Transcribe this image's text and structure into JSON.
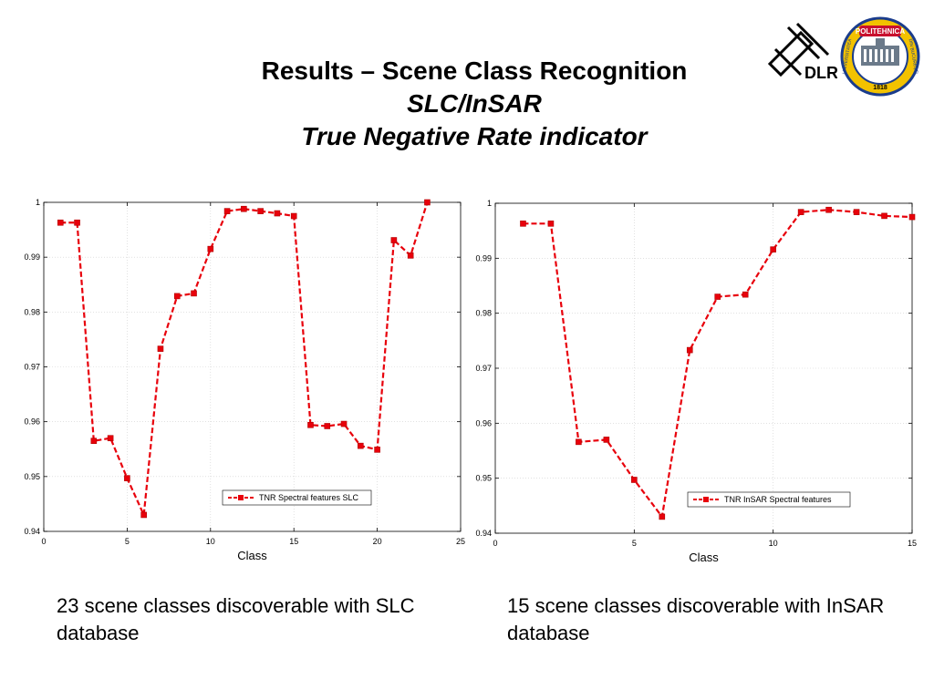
{
  "header": {
    "title": "Results – Scene Class Recognition",
    "subtitle1": "SLC/InSAR",
    "subtitle2": "True Negative Rate indicator"
  },
  "logos": {
    "dlr_text": "DLR",
    "poli_top": "POLITEHNICA",
    "poli_year": "1818",
    "poli_left": "UNIVERSITATEA",
    "poli_right": "DIN BUCUREȘTI"
  },
  "chart_data": [
    {
      "type": "line",
      "xlabel": "Class",
      "ylabel": "",
      "xlim": [
        0,
        25
      ],
      "ylim": [
        0.94,
        1
      ],
      "xticks": [
        0,
        5,
        10,
        15,
        20,
        25
      ],
      "yticks": [
        0.94,
        0.95,
        0.96,
        0.97,
        0.98,
        0.99,
        1
      ],
      "ytick_labels": [
        "0.94",
        "0.95",
        "0.96",
        "0.97",
        "0.98",
        "0.99",
        "1"
      ],
      "grid": true,
      "legend_position": "bottom-right",
      "color": "#e8000b",
      "series": [
        {
          "name": "TNR Spectral features SLC",
          "x": [
            1,
            2,
            3,
            4,
            5,
            6,
            7,
            8,
            9,
            10,
            11,
            12,
            13,
            14,
            15,
            16,
            17,
            18,
            19,
            20,
            21,
            22,
            23
          ],
          "y": [
            0.9963,
            0.9963,
            0.9565,
            0.957,
            0.9497,
            0.943,
            0.9733,
            0.9829,
            0.9834,
            0.9915,
            0.9984,
            0.9988,
            0.9984,
            0.998,
            0.9975,
            0.9594,
            0.9592,
            0.9596,
            0.9556,
            0.9549,
            0.9931,
            0.9903,
            1.0
          ]
        }
      ]
    },
    {
      "type": "line",
      "xlabel": "Class",
      "ylabel": "",
      "xlim": [
        0,
        15
      ],
      "ylim": [
        0.94,
        1
      ],
      "xticks": [
        0,
        5,
        10,
        15
      ],
      "yticks": [
        0.94,
        0.95,
        0.96,
        0.97,
        0.98,
        0.99,
        1
      ],
      "ytick_labels": [
        "0.94",
        "0.95",
        "0.96",
        "0.97",
        "0.98",
        "0.99",
        "1"
      ],
      "grid": true,
      "legend_position": "bottom-right",
      "color": "#e8000b",
      "series": [
        {
          "name": "TNR InSAR Spectral features",
          "x": [
            1,
            2,
            3,
            4,
            5,
            6,
            7,
            8,
            9,
            10,
            11,
            12,
            13,
            14,
            15
          ],
          "y": [
            0.9963,
            0.9963,
            0.9566,
            0.957,
            0.9497,
            0.943,
            0.9733,
            0.983,
            0.9834,
            0.9916,
            0.9984,
            0.9988,
            0.9984,
            0.9977,
            0.9975
          ]
        }
      ]
    }
  ],
  "captions": {
    "left": "23 scene classes discoverable with SLC database",
    "right": "15 scene  classes discoverable with InSAR database"
  }
}
